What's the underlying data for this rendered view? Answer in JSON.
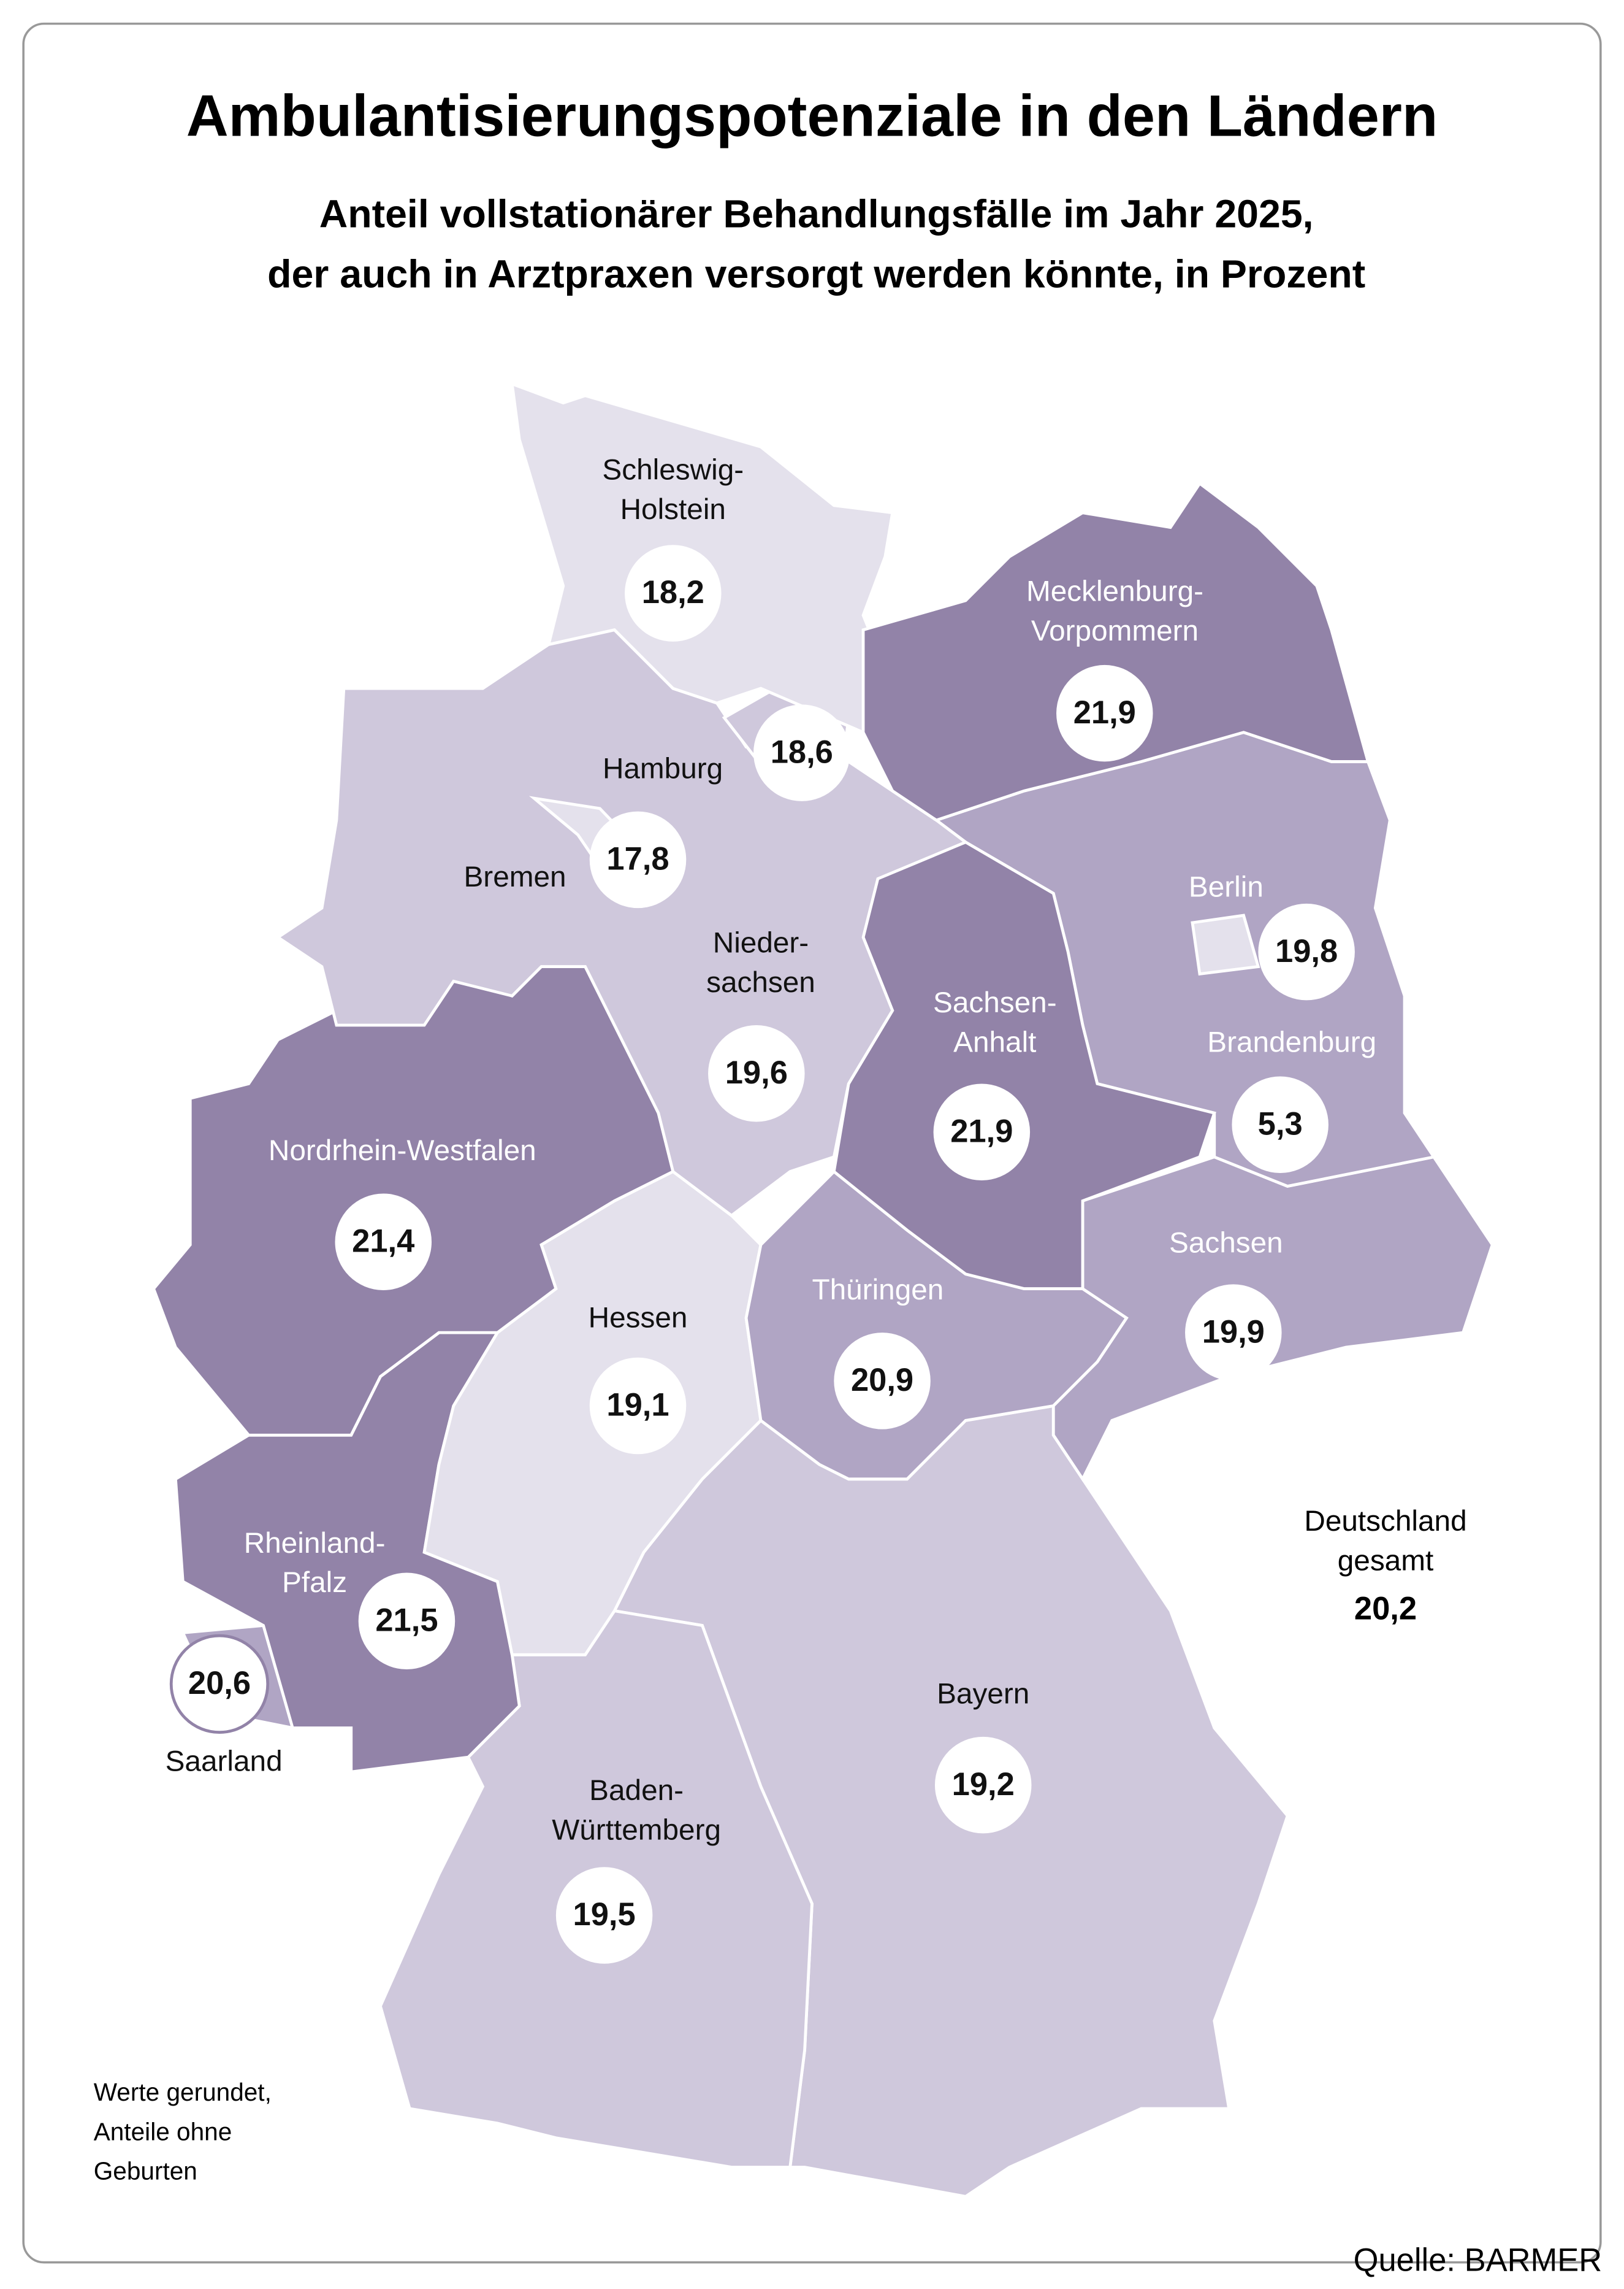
{
  "header": {
    "title": "Ambulantisierungspotenziale in den Ländern",
    "subtitle": [
      "Anteil vollstationärer Behandlungsfälle im Jahr 2025,",
      "der auch in Arztpraxen versorgt werden könnte, in Prozent"
    ]
  },
  "regions": [
    {
      "name": [
        "Schleswig-",
        "Holstein"
      ],
      "value": "18,2",
      "color": "#e4e1ec"
    },
    {
      "name": [
        "Hamburg"
      ],
      "value": "18,6",
      "color": "#cfc8dc"
    },
    {
      "name": [
        "Bremen"
      ],
      "value": "17,8",
      "color": "#e4e1ec"
    },
    {
      "name": [
        "Mecklenburg-",
        "Vorpommern"
      ],
      "value": "21,9",
      "color": "#9283a8"
    },
    {
      "name": [
        "Nieder-",
        "sachsen"
      ],
      "value": "19,6",
      "color": "#cfc8dc"
    },
    {
      "name": [
        "Nordrhein-Westfalen"
      ],
      "value": "21,4",
      "color": "#9283a8"
    },
    {
      "name": [
        "Hessen"
      ],
      "value": "19,1",
      "color": "#e4e1ec"
    },
    {
      "name": [
        "Thüringen"
      ],
      "value": "20,9",
      "color": "#b0a5c4"
    },
    {
      "name": [
        "Sachsen-",
        "Anhalt"
      ],
      "value": "21,9",
      "color": "#9283a8"
    },
    {
      "name": [
        "Brandenburg"
      ],
      "value": "5,3",
      "color": "#b0a5c4"
    },
    {
      "name": [
        "Berlin"
      ],
      "value": "19,8",
      "color": "#e4e1ec"
    },
    {
      "name": [
        "Sachsen"
      ],
      "value": "19,9",
      "color": "#b0a5c4"
    },
    {
      "name": [
        "Rheinland-",
        "Pfalz"
      ],
      "value": "21,5",
      "color": "#9283a8"
    },
    {
      "name": [
        "Saarland"
      ],
      "value": "20,6",
      "color": "#b0a5c4"
    },
    {
      "name": [
        "Baden-",
        "Württemberg"
      ],
      "value": "19,5",
      "color": "#cfc8dc"
    },
    {
      "name": [
        "Bayern"
      ],
      "value": "19,2",
      "color": "#cfc8dc"
    }
  ],
  "total": {
    "label": [
      "Deutschland",
      "gesamt"
    ],
    "value": "20,2"
  },
  "note": [
    "Werte gerundet,",
    "Anteile ohne",
    "Geburten"
  ],
  "source": "Quelle: BARMER"
}
